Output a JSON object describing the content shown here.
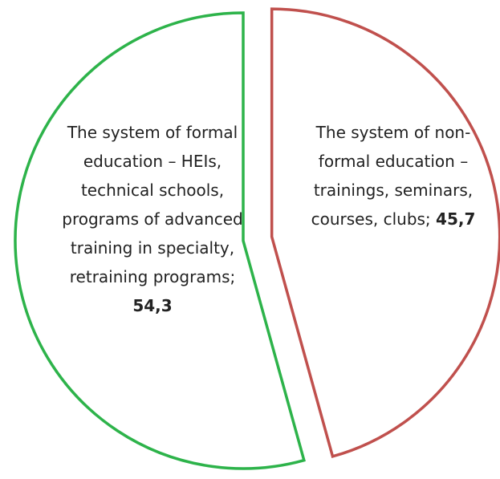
{
  "chart_data": {
    "type": "pie",
    "categories": [
      "The system of formal education – HEIs, technical schools, programs of advanced training in specialty, retraining programs;",
      "The system of non-formal education – trainings, seminars, courses, clubs;"
    ],
    "values": [
      54.3,
      45.7
    ],
    "value_labels": [
      "54,3",
      "45,7"
    ],
    "colors": [
      "#2db34a",
      "#c0504d"
    ],
    "fill": "none"
  }
}
